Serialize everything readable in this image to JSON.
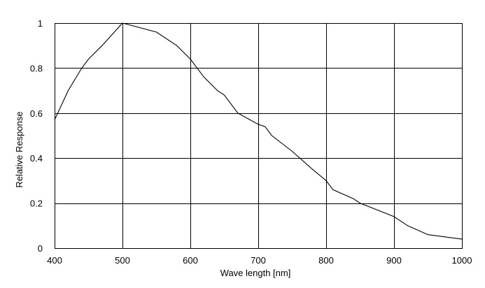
{
  "chart_data": {
    "type": "line",
    "title": "",
    "xlabel": "Wave length [nm]",
    "ylabel": "Relative Response",
    "xlim": [
      400,
      1000
    ],
    "ylim": [
      0,
      1
    ],
    "xticks": [
      400,
      500,
      600,
      700,
      800,
      900,
      1000
    ],
    "yticks": [
      0,
      0.2,
      0.4,
      0.6,
      0.8,
      1
    ],
    "xtick_labels": [
      "400",
      "500",
      "600",
      "700",
      "800",
      "900",
      "1000"
    ],
    "ytick_labels": [
      "0",
      "0.2",
      "0.4",
      "0.6",
      "0.8",
      "1"
    ],
    "grid": true,
    "series": [
      {
        "color": "#000000",
        "x": [
          400,
          420,
          440,
          450,
          470,
          500,
          550,
          580,
          600,
          620,
          640,
          650,
          670,
          700,
          710,
          720,
          750,
          780,
          800,
          810,
          840,
          850,
          900,
          920,
          950,
          1000
        ],
        "y": [
          0.57,
          0.7,
          0.8,
          0.84,
          0.9,
          1.0,
          0.96,
          0.9,
          0.84,
          0.76,
          0.7,
          0.68,
          0.6,
          0.55,
          0.54,
          0.5,
          0.43,
          0.35,
          0.3,
          0.26,
          0.22,
          0.2,
          0.14,
          0.1,
          0.06,
          0.04
        ]
      }
    ]
  }
}
